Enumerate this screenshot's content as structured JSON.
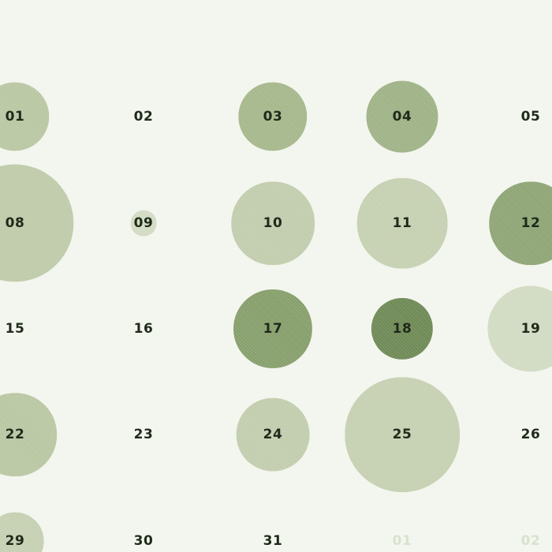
{
  "calendar": {
    "days": [
      {
        "label": "01",
        "size": 0.48,
        "color": "#bac7a3"
      },
      {
        "label": "02",
        "size": 0,
        "color": "#bac7a3"
      },
      {
        "label": "03",
        "size": 0.48,
        "color": "#a6b88c"
      },
      {
        "label": "04",
        "size": 0.5,
        "color": "#9fb387"
      },
      {
        "label": "05",
        "size": 0,
        "color": "#bac7a3"
      },
      {
        "label": "08",
        "size": 0.82,
        "color": "#bfcbaa"
      },
      {
        "label": "09",
        "size": 0.18,
        "color": "#d2dbc3"
      },
      {
        "label": "10",
        "size": 0.58,
        "color": "#c2cdae"
      },
      {
        "label": "11",
        "size": 0.63,
        "color": "#c6d0b2"
      },
      {
        "label": "12",
        "size": 0.58,
        "color": "#8fa576"
      },
      {
        "label": "15",
        "size": 0,
        "color": "#bac7a3"
      },
      {
        "label": "16",
        "size": 0,
        "color": "#bac7a3"
      },
      {
        "label": "17",
        "size": 0.55,
        "color": "#879f6c"
      },
      {
        "label": "18",
        "size": 0.43,
        "color": "#6f8a56"
      },
      {
        "label": "19",
        "size": 0.6,
        "color": "#d2dbc3"
      },
      {
        "label": "22",
        "size": 0.58,
        "color": "#bac7a3"
      },
      {
        "label": "23",
        "size": 0,
        "color": "#bac7a3"
      },
      {
        "label": "24",
        "size": 0.51,
        "color": "#c2cdae"
      },
      {
        "label": "25",
        "size": 0.8,
        "color": "#c6d0b2"
      },
      {
        "label": "26",
        "size": 0,
        "color": "#bac7a3"
      },
      {
        "label": "29",
        "size": 0.4,
        "color": "#c6d0b2"
      },
      {
        "label": "30",
        "size": 0,
        "color": "#bac7a3"
      },
      {
        "label": "31",
        "size": 0,
        "color": "#bac7a3"
      },
      {
        "label": "01",
        "size": 0,
        "color": "#bac7a3",
        "outside_month": true
      },
      {
        "label": "02",
        "size": 0,
        "color": "#bac7a3",
        "outside_month": true
      }
    ]
  }
}
